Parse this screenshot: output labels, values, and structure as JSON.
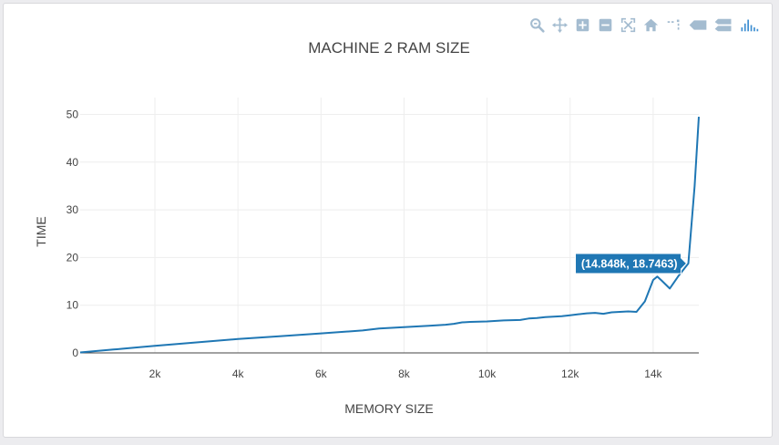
{
  "modebar": {
    "buttons": [
      {
        "name": "zoom-icon",
        "label": "Zoom"
      },
      {
        "name": "pan-icon",
        "label": "Pan"
      },
      {
        "name": "zoom-in-icon",
        "label": "Zoom in"
      },
      {
        "name": "zoom-out-icon",
        "label": "Zoom out"
      },
      {
        "name": "autoscale-icon",
        "label": "Autoscale"
      },
      {
        "name": "reset-axes-icon",
        "label": "Reset axes"
      },
      {
        "name": "spike-lines-icon",
        "label": "Toggle spike lines"
      },
      {
        "name": "hover-closest-icon",
        "label": "Show closest data on hover"
      },
      {
        "name": "hover-compare-icon",
        "label": "Compare data on hover"
      },
      {
        "name": "plotly-logo-icon",
        "label": "Produced with Plotly"
      }
    ],
    "colors": {
      "icon": "#a4bcd0",
      "logo": "#3f8fd2"
    }
  },
  "chart_data": {
    "type": "line",
    "title": "MACHINE 2 RAM SIZE",
    "xlabel": "MEMORY SIZE",
    "ylabel": "TIME",
    "xlim": [
      200,
      15100
    ],
    "ylim": [
      0,
      52
    ],
    "x_ticks": [
      2000,
      4000,
      6000,
      8000,
      10000,
      12000,
      14000
    ],
    "x_tick_labels": [
      "2k",
      "4k",
      "6k",
      "8k",
      "10k",
      "12k",
      "14k"
    ],
    "y_ticks": [
      0,
      10,
      20,
      30,
      40,
      50
    ],
    "y_tick_labels": [
      "0",
      "10",
      "20",
      "30",
      "40",
      "50"
    ],
    "grid": true,
    "series": [
      {
        "color": "#1f77b4",
        "x": [
          200,
          1000,
          2000,
          3000,
          4000,
          5000,
          6000,
          7000,
          7400,
          8000,
          8600,
          9000,
          9200,
          9400,
          9600,
          10000,
          10400,
          10800,
          11000,
          11200,
          11400,
          11600,
          11800,
          12000,
          12200,
          12400,
          12600,
          12800,
          13000,
          13200,
          13400,
          13600,
          13800,
          14000,
          14100,
          14200,
          14400,
          14600,
          14848,
          15000,
          15100
        ],
        "y": [
          0.1,
          0.7,
          1.5,
          2.2,
          2.9,
          3.5,
          4.1,
          4.7,
          5.1,
          5.4,
          5.7,
          5.9,
          6.1,
          6.4,
          6.5,
          6.6,
          6.8,
          6.9,
          7.2,
          7.3,
          7.5,
          7.6,
          7.7,
          7.9,
          8.1,
          8.3,
          8.4,
          8.2,
          8.5,
          8.6,
          8.7,
          8.6,
          10.8,
          15.3,
          16.0,
          15.2,
          13.5,
          16.0,
          18.7463,
          35.0,
          49.5
        ]
      }
    ],
    "hover_label": {
      "text": "(14.848k, 18.7463)",
      "x": 14848,
      "y": 18.7463,
      "bg": "#1f77b4"
    }
  }
}
